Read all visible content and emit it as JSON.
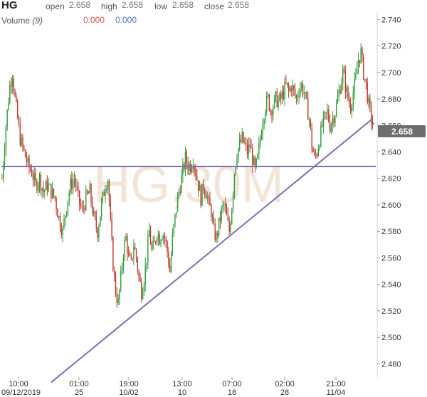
{
  "header": {
    "symbol": "HG",
    "open_label": "open",
    "open_value": "2.658",
    "high_label": "high",
    "high_value": "2.658",
    "low_label": "low",
    "low_value": "2.658",
    "close_label": "close",
    "close_value": "2.658",
    "volume_label": "Volume",
    "volume_period": "(9)",
    "volume_value_1": "0.000",
    "volume_value_2": "0.000"
  },
  "colors": {
    "up": "#2e9e3e",
    "down": "#c0392b",
    "trendline": "#7b6fb0",
    "price_badge_bg": "#6d6d6d",
    "volume_red": "#d9534f",
    "volume_blue": "#4a78c8"
  },
  "watermark": "HG,30M",
  "chart_data": {
    "type": "candlestick",
    "ylim": [
      2.47,
      2.745
    ],
    "yticks": [
      "2.740",
      "2.720",
      "2.700",
      "2.680",
      "2.660",
      "2.640",
      "2.620",
      "2.600",
      "2.580",
      "2.560",
      "2.540",
      "2.520",
      "2.500",
      "2.480"
    ],
    "last_price": "2.658",
    "x_ticks": [
      {
        "time": "10:00",
        "date": "09/12/2019"
      },
      {
        "time": "01:00",
        "date": "25"
      },
      {
        "time": "19:00",
        "date": "10/02"
      },
      {
        "time": "13:00",
        "date": "10"
      },
      {
        "time": "07:00",
        "date": "18"
      },
      {
        "time": "02:00",
        "date": "28"
      },
      {
        "time": "21:00",
        "date": "11/04"
      }
    ],
    "horizontal_line": 2.629,
    "trendline": {
      "from": {
        "bar": 38,
        "price": 2.466
      },
      "to": {
        "bar": 287,
        "price": 2.665
      }
    },
    "close_path": [
      [
        0,
        2.62
      ],
      [
        3,
        2.66
      ],
      [
        6,
        2.69
      ],
      [
        8,
        2.7
      ],
      [
        10,
        2.68
      ],
      [
        12,
        2.665
      ],
      [
        14,
        2.65
      ],
      [
        17,
        2.64
      ],
      [
        20,
        2.63
      ],
      [
        23,
        2.625
      ],
      [
        26,
        2.615
      ],
      [
        29,
        2.62
      ],
      [
        32,
        2.61
      ],
      [
        35,
        2.615
      ],
      [
        38,
        2.61
      ],
      [
        41,
        2.605
      ],
      [
        44,
        2.59
      ],
      [
        47,
        2.58
      ],
      [
        50,
        2.6
      ],
      [
        53,
        2.615
      ],
      [
        56,
        2.62
      ],
      [
        59,
        2.605
      ],
      [
        62,
        2.595
      ],
      [
        65,
        2.605
      ],
      [
        68,
        2.61
      ],
      [
        71,
        2.59
      ],
      [
        74,
        2.58
      ],
      [
        77,
        2.6
      ],
      [
        80,
        2.615
      ],
      [
        82,
        2.62
      ],
      [
        84,
        2.585
      ],
      [
        86,
        2.555
      ],
      [
        88,
        2.535
      ],
      [
        90,
        2.525
      ],
      [
        92,
        2.545
      ],
      [
        94,
        2.565
      ],
      [
        96,
        2.575
      ],
      [
        98,
        2.56
      ],
      [
        100,
        2.555
      ],
      [
        102,
        2.57
      ],
      [
        104,
        2.56
      ],
      [
        106,
        2.545
      ],
      [
        108,
        2.535
      ],
      [
        110,
        2.545
      ],
      [
        112,
        2.56
      ],
      [
        114,
        2.58
      ],
      [
        116,
        2.565
      ],
      [
        118,
        2.57
      ],
      [
        120,
        2.58
      ],
      [
        122,
        2.575
      ],
      [
        124,
        2.58
      ],
      [
        126,
        2.575
      ],
      [
        128,
        2.565
      ],
      [
        130,
        2.55
      ],
      [
        132,
        2.575
      ],
      [
        134,
        2.59
      ],
      [
        136,
        2.605
      ],
      [
        138,
        2.615
      ],
      [
        140,
        2.625
      ],
      [
        142,
        2.635
      ],
      [
        144,
        2.63
      ],
      [
        146,
        2.63
      ],
      [
        148,
        2.635
      ],
      [
        150,
        2.625
      ],
      [
        152,
        2.615
      ],
      [
        154,
        2.605
      ],
      [
        156,
        2.615
      ],
      [
        158,
        2.61
      ],
      [
        160,
        2.6
      ],
      [
        162,
        2.595
      ],
      [
        164,
        2.58
      ],
      [
        166,
        2.575
      ],
      [
        168,
        2.585
      ],
      [
        170,
        2.595
      ],
      [
        172,
        2.6
      ],
      [
        174,
        2.59
      ],
      [
        176,
        2.58
      ],
      [
        178,
        2.6
      ],
      [
        180,
        2.625
      ],
      [
        182,
        2.64
      ],
      [
        184,
        2.645
      ],
      [
        186,
        2.65
      ],
      [
        188,
        2.645
      ],
      [
        190,
        2.64
      ],
      [
        192,
        2.645
      ],
      [
        194,
        2.635
      ],
      [
        196,
        2.625
      ],
      [
        198,
        2.635
      ],
      [
        200,
        2.65
      ],
      [
        202,
        2.665
      ],
      [
        204,
        2.675
      ],
      [
        206,
        2.68
      ],
      [
        208,
        2.672
      ],
      [
        210,
        2.675
      ],
      [
        212,
        2.68
      ],
      [
        214,
        2.678
      ],
      [
        216,
        2.68
      ],
      [
        218,
        2.685
      ],
      [
        220,
        2.69
      ],
      [
        222,
        2.685
      ],
      [
        224,
        2.69
      ],
      [
        226,
        2.685
      ],
      [
        228,
        2.68
      ],
      [
        230,
        2.688
      ],
      [
        232,
        2.69
      ],
      [
        234,
        2.685
      ],
      [
        236,
        2.675
      ],
      [
        238,
        2.665
      ],
      [
        240,
        2.645
      ],
      [
        242,
        2.635
      ],
      [
        244,
        2.64
      ],
      [
        246,
        2.65
      ],
      [
        248,
        2.66
      ],
      [
        250,
        2.665
      ],
      [
        252,
        2.67
      ],
      [
        254,
        2.66
      ],
      [
        256,
        2.665
      ],
      [
        258,
        2.67
      ],
      [
        260,
        2.68
      ],
      [
        262,
        2.69
      ],
      [
        264,
        2.7
      ],
      [
        266,
        2.69
      ],
      [
        268,
        2.68
      ],
      [
        270,
        2.675
      ],
      [
        272,
        2.685
      ],
      [
        274,
        2.695
      ],
      [
        276,
        2.71
      ],
      [
        278,
        2.715
      ],
      [
        280,
        2.7
      ],
      [
        282,
        2.69
      ],
      [
        284,
        2.675
      ],
      [
        286,
        2.665
      ],
      [
        288,
        2.658
      ]
    ]
  }
}
